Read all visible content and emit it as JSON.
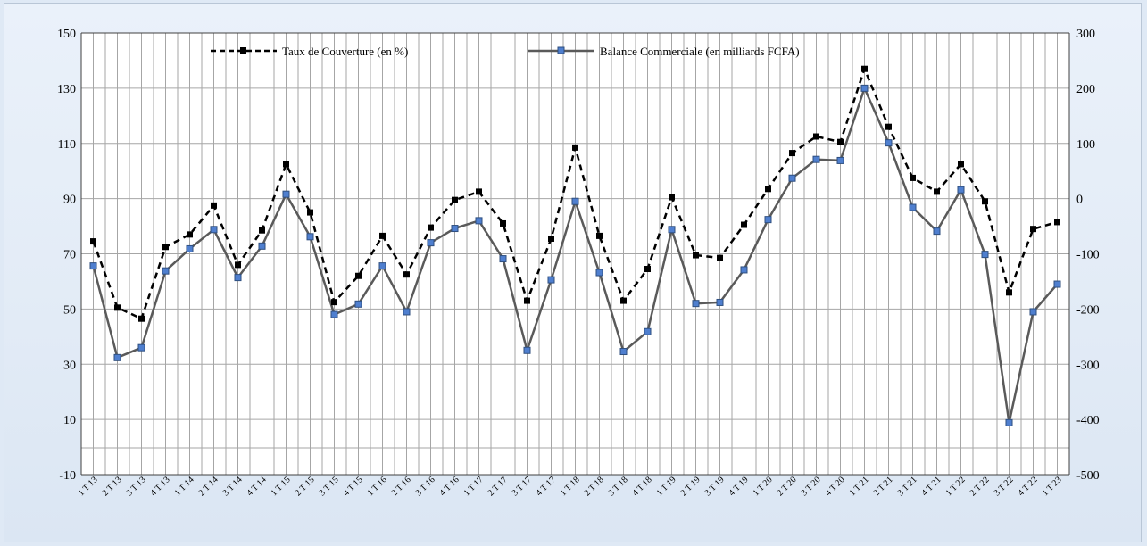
{
  "chart_data": {
    "type": "line",
    "categories": [
      "1 T 13",
      "2 T 13",
      "3 T 13",
      "4 T 13",
      "1 T 14",
      "2 T 14",
      "3 T 14",
      "4 T 14",
      "1 T 15",
      "2 T 15",
      "3 T 15",
      "4 T 15",
      "1 T 16",
      "2 T 16",
      "3 T 16",
      "4 T 16",
      "1 T 17",
      "2 T 17",
      "3 T 17",
      "4 T 17",
      "1 T 18",
      "2 T 18",
      "3 T 18",
      "4 T 18",
      "1 T 19",
      "2 T 19",
      "3 T 19",
      "4 T 19",
      "1 T 20",
      "2 T 20",
      "3 T 20",
      "4 T 20",
      "1 T 21",
      "2 T 21",
      "3 T 21",
      "4 T 21",
      "1 T 22",
      "2 T 22",
      "3 T 22",
      "4 T 22",
      "1 T 23"
    ],
    "series": [
      {
        "name": "Taux de Couverture (en %)",
        "axis": "left",
        "style": "dashed",
        "color": "#000000",
        "values": [
          74.5,
          50.5,
          46.5,
          72.5,
          77,
          87.5,
          66,
          78.5,
          102.5,
          85,
          52.5,
          62,
          76.5,
          62.5,
          79.5,
          89.5,
          92.5,
          81,
          53,
          75.5,
          108.5,
          76.5,
          53,
          64.5,
          90.5,
          69.5,
          68.5,
          80.5,
          93.5,
          106.5,
          112.5,
          110.5,
          137,
          116,
          97.5,
          92.5,
          102.5,
          89,
          56,
          79,
          81.5
        ]
      },
      {
        "name": "Balance Commerciale (en milliards FCFA)",
        "axis": "right",
        "style": "solid",
        "color": "#5a5a5a",
        "marker_color": "#4f7fcf",
        "values": [
          -122,
          -288,
          -270,
          -131,
          -91,
          -56,
          -143,
          -86,
          8,
          -69,
          -210,
          -191,
          -122,
          -205,
          -80,
          -54,
          -40,
          -109,
          -275,
          -147,
          -5,
          -134,
          -277,
          -241,
          -56,
          -190,
          -188,
          -129,
          -38,
          37,
          71,
          69,
          200,
          101,
          -16,
          -59,
          16,
          -101,
          -406,
          -205,
          -155
        ]
      }
    ],
    "y_left": {
      "min": -10,
      "max": 150,
      "ticks": [
        -10,
        10,
        30,
        50,
        70,
        90,
        110,
        130,
        150
      ]
    },
    "y_right": {
      "min": -500,
      "max": 300,
      "ticks": [
        -500,
        -400,
        -300,
        -200,
        -100,
        0,
        100,
        200,
        300
      ]
    },
    "title": "",
    "xlabel": "",
    "ylabel": "",
    "grid": true,
    "legend_position": "top"
  }
}
